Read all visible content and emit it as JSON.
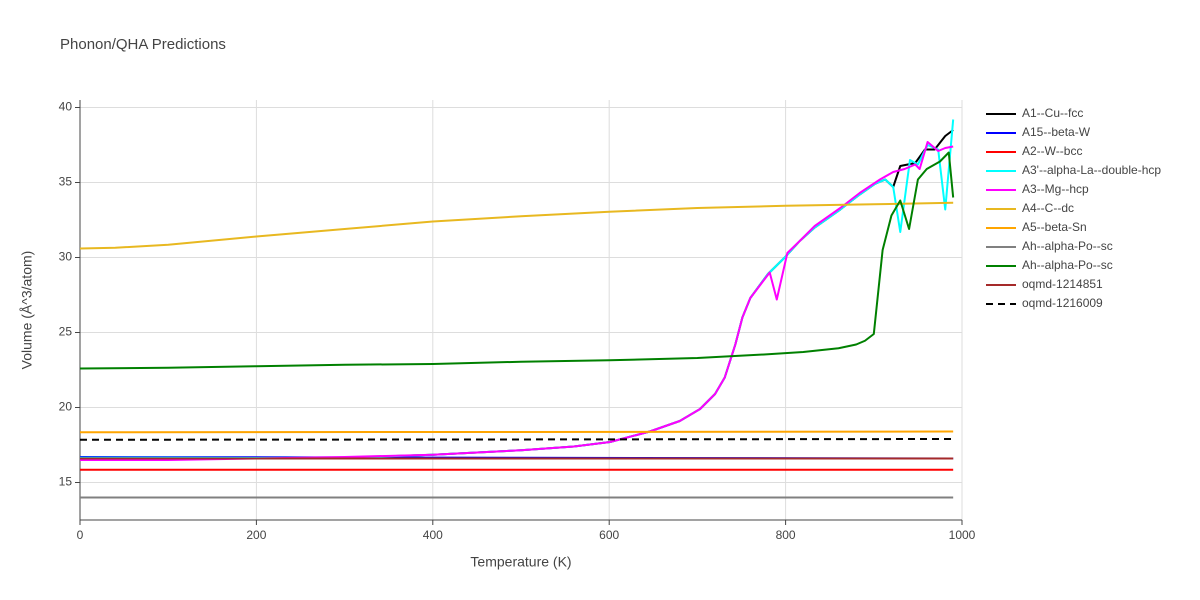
{
  "chart_data": {
    "type": "line",
    "title": "Phonon/QHA Predictions",
    "x_label": "Temperature (K)",
    "y_label": "Volume (Å^3/atom)",
    "xlim": [
      0,
      1000
    ],
    "ylim": [
      12.5,
      40.5
    ],
    "xticks": [
      0,
      200,
      400,
      600,
      800,
      1000
    ],
    "yticks": [
      15,
      20,
      25,
      30,
      35,
      40
    ],
    "grid": true,
    "legend": "right",
    "series": [
      {
        "name": "A1--Cu--fcc",
        "color": "#000000",
        "x": [
          0,
          100,
          200,
          300,
          400,
          500,
          560,
          601,
          646,
          680,
          703,
          720,
          731,
          743,
          751,
          760,
          780,
          799,
          816,
          833,
          862,
          884,
          901,
          913,
          922,
          930,
          947,
          958,
          969,
          981,
          990
        ],
        "values": [
          16.65,
          16.65,
          16.63,
          16.65,
          16.85,
          17.15,
          17.4,
          17.7,
          18.4,
          19.1,
          19.9,
          20.9,
          22.0,
          24.2,
          26.0,
          27.3,
          28.9,
          30.0,
          31.1,
          32.0,
          33.2,
          34.2,
          34.9,
          35.2,
          34.7,
          36.1,
          36.3,
          37.2,
          37.2,
          38.1,
          38.5
        ]
      },
      {
        "name": "A15--beta-W",
        "color": "#0000ff",
        "x": [
          0,
          500,
          990
        ],
        "values": [
          16.7,
          16.65,
          16.6
        ]
      },
      {
        "name": "A2--W--bcc",
        "color": "#ff0000",
        "x": [
          0,
          500,
          990
        ],
        "values": [
          15.85,
          15.85,
          15.85
        ]
      },
      {
        "name": "A3'--alpha-La--double-hcp",
        "color": "#00ffff",
        "x": [
          0,
          100,
          200,
          300,
          400,
          500,
          560,
          601,
          646,
          680,
          703,
          720,
          731,
          743,
          751,
          760,
          780,
          799,
          816,
          833,
          862,
          884,
          901,
          913,
          922,
          930,
          941,
          950,
          961,
          973,
          981,
          990
        ],
        "values": [
          16.65,
          16.65,
          16.63,
          16.65,
          16.85,
          17.15,
          17.4,
          17.7,
          18.4,
          19.1,
          19.9,
          20.9,
          22.0,
          24.2,
          26.0,
          27.3,
          28.9,
          30.0,
          31.1,
          32.0,
          33.2,
          34.2,
          34.9,
          35.2,
          34.7,
          31.7,
          36.5,
          36.2,
          37.5,
          37.2,
          33.2,
          39.2
        ]
      },
      {
        "name": "A3--Mg--hcp",
        "color": "#ff00ff",
        "x": [
          0,
          100,
          200,
          300,
          400,
          500,
          560,
          601,
          646,
          680,
          703,
          720,
          731,
          743,
          751,
          760,
          782,
          790,
          802,
          816,
          833,
          862,
          884,
          907,
          922,
          935,
          947,
          952,
          961,
          973,
          981,
          990
        ],
        "values": [
          16.5,
          16.5,
          16.6,
          16.7,
          16.85,
          17.15,
          17.4,
          17.7,
          18.4,
          19.1,
          19.9,
          20.9,
          22.0,
          24.2,
          26.0,
          27.3,
          29.0,
          27.2,
          30.3,
          31.1,
          32.1,
          33.3,
          34.3,
          35.2,
          35.7,
          35.9,
          36.2,
          35.9,
          37.7,
          37.1,
          37.3,
          37.4
        ]
      },
      {
        "name": "A4--C--dc",
        "color": "#e8b820",
        "x": [
          0,
          40,
          100,
          200,
          300,
          400,
          500,
          600,
          700,
          800,
          900,
          990
        ],
        "values": [
          30.6,
          30.65,
          30.85,
          31.4,
          31.9,
          32.4,
          32.75,
          33.05,
          33.3,
          33.45,
          33.55,
          33.65
        ]
      },
      {
        "name": "A5--beta-Sn",
        "color": "#ffa500",
        "x": [
          0,
          500,
          990
        ],
        "values": [
          18.35,
          18.37,
          18.4
        ]
      },
      {
        "name": "Ah--alpha-Po--sc",
        "color": "#808080",
        "x": [
          0,
          500,
          990
        ],
        "values": [
          14.0,
          14.0,
          14.0
        ]
      },
      {
        "name": "Ah--alpha-Po--sc",
        "color": "#008000",
        "x": [
          0,
          100,
          200,
          300,
          400,
          500,
          600,
          700,
          780,
          820,
          860,
          880,
          890,
          900,
          910,
          920,
          930,
          940,
          950,
          960,
          975,
          985,
          990
        ],
        "values": [
          22.6,
          22.65,
          22.75,
          22.85,
          22.9,
          23.05,
          23.15,
          23.3,
          23.55,
          23.7,
          23.95,
          24.2,
          24.45,
          24.9,
          30.5,
          32.8,
          33.8,
          31.9,
          35.2,
          35.9,
          36.4,
          37.0,
          34.0
        ]
      },
      {
        "name": "oqmd-1214851",
        "color": "#a52a2a",
        "x": [
          0,
          500,
          990
        ],
        "values": [
          16.6,
          16.6,
          16.6
        ]
      },
      {
        "name": "oqmd-1216009",
        "color": "#000000",
        "dash": "dash",
        "x": [
          0,
          500,
          990
        ],
        "values": [
          17.85,
          17.87,
          17.9
        ]
      }
    ]
  }
}
